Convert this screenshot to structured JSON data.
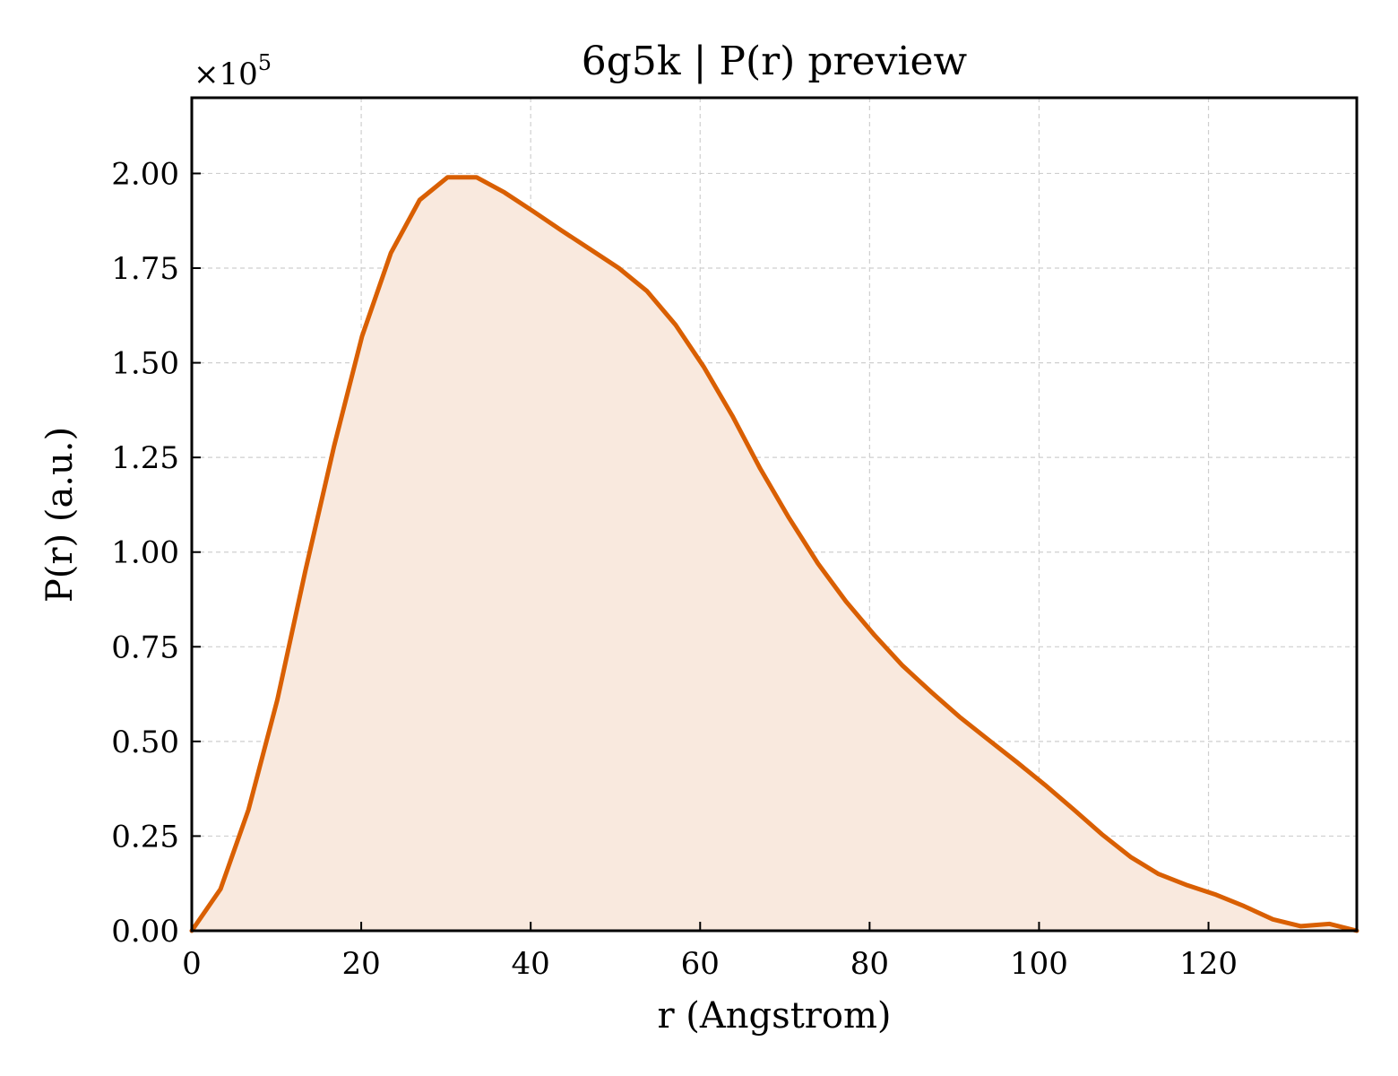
{
  "chart_data": {
    "type": "area",
    "title": "6g5k | P(r) preview",
    "xlabel": "r (Angstrom)",
    "ylabel": "P(r) (a.u.)",
    "y_scale_label": "×10",
    "y_scale_exponent": "5",
    "y_multiplier": 100000,
    "xlim": [
      0,
      137.5
    ],
    "ylim": [
      0,
      2.2
    ],
    "x_ticks": [
      0,
      20,
      40,
      60,
      80,
      100,
      120
    ],
    "x_tick_labels": [
      "0",
      "20",
      "40",
      "60",
      "80",
      "100",
      "120"
    ],
    "y_ticks": [
      0,
      0.25,
      0.5,
      0.75,
      1.0,
      1.25,
      1.5,
      1.75,
      2.0
    ],
    "y_tick_labels": [
      "0.00",
      "0.25",
      "0.50",
      "0.75",
      "1.00",
      "1.25",
      "1.50",
      "1.75",
      "2.00"
    ],
    "grid": true,
    "series": [
      {
        "color": "#d95f02",
        "fill_color": "#f9e9de",
        "x": [
          0,
          3.4,
          6.7,
          10.1,
          13.4,
          16.8,
          20.1,
          23.5,
          26.9,
          30.2,
          33.6,
          36.9,
          40.3,
          43.6,
          47.0,
          50.4,
          53.7,
          57.1,
          60.4,
          63.8,
          67.1,
          70.5,
          73.9,
          77.2,
          80.6,
          83.9,
          87.3,
          90.6,
          94.0,
          97.4,
          100.7,
          104.1,
          107.4,
          110.8,
          114.1,
          117.5,
          120.9,
          124.2,
          127.6,
          130.9,
          134.3,
          137.5
        ],
        "y": [
          0.0,
          0.11,
          0.32,
          0.61,
          0.95,
          1.28,
          1.57,
          1.79,
          1.93,
          1.99,
          1.99,
          1.95,
          1.9,
          1.85,
          1.8,
          1.75,
          1.69,
          1.6,
          1.49,
          1.36,
          1.22,
          1.09,
          0.97,
          0.87,
          0.78,
          0.7,
          0.63,
          0.565,
          0.505,
          0.445,
          0.385,
          0.32,
          0.255,
          0.195,
          0.15,
          0.12,
          0.095,
          0.065,
          0.03,
          0.012,
          0.018,
          0.0
        ]
      }
    ]
  }
}
